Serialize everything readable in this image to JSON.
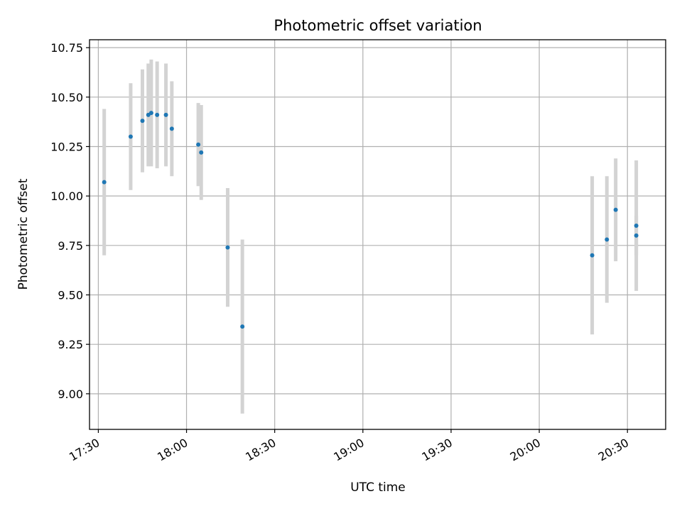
{
  "chart_data": {
    "type": "scatter",
    "title": "Photometric offset variation",
    "xlabel": "UTC time",
    "ylabel": "Photometric offset",
    "x_ticks": [
      "17:30",
      "18:00",
      "18:30",
      "19:00",
      "19:30",
      "20:00",
      "20:30"
    ],
    "y_ticks": [
      "9.00",
      "9.25",
      "9.50",
      "9.75",
      "10.00",
      "10.25",
      "10.50",
      "10.75"
    ],
    "xlim": [
      "17:27",
      "20:43"
    ],
    "ylim": [
      8.82,
      10.79
    ],
    "grid": true,
    "colors": {
      "points": "#1f77b4",
      "errorbars": "#d3d3d3",
      "grid": "#b0b0b0"
    },
    "points": [
      {
        "time": "17:32",
        "y": 10.07,
        "err": 0.37
      },
      {
        "time": "17:41",
        "y": 10.3,
        "err": 0.27
      },
      {
        "time": "17:45",
        "y": 10.38,
        "err": 0.26
      },
      {
        "time": "17:47",
        "y": 10.41,
        "err": 0.26
      },
      {
        "time": "17:48",
        "y": 10.42,
        "err": 0.27
      },
      {
        "time": "17:50",
        "y": 10.41,
        "err": 0.27
      },
      {
        "time": "17:53",
        "y": 10.41,
        "err": 0.26
      },
      {
        "time": "17:55",
        "y": 10.34,
        "err": 0.24
      },
      {
        "time": "18:04",
        "y": 10.26,
        "err": 0.21
      },
      {
        "time": "18:05",
        "y": 10.22,
        "err": 0.24
      },
      {
        "time": "18:14",
        "y": 9.74,
        "err": 0.3
      },
      {
        "time": "18:19",
        "y": 9.34,
        "err": 0.44
      },
      {
        "time": "20:18",
        "y": 9.7,
        "err": 0.4
      },
      {
        "time": "20:23",
        "y": 9.78,
        "err": 0.32
      },
      {
        "time": "20:26",
        "y": 9.93,
        "err": 0.26
      },
      {
        "time": "20:33",
        "y": 9.85,
        "err": 0.33
      },
      {
        "time": "20:33",
        "y": 9.8,
        "err": 0.1
      }
    ]
  }
}
